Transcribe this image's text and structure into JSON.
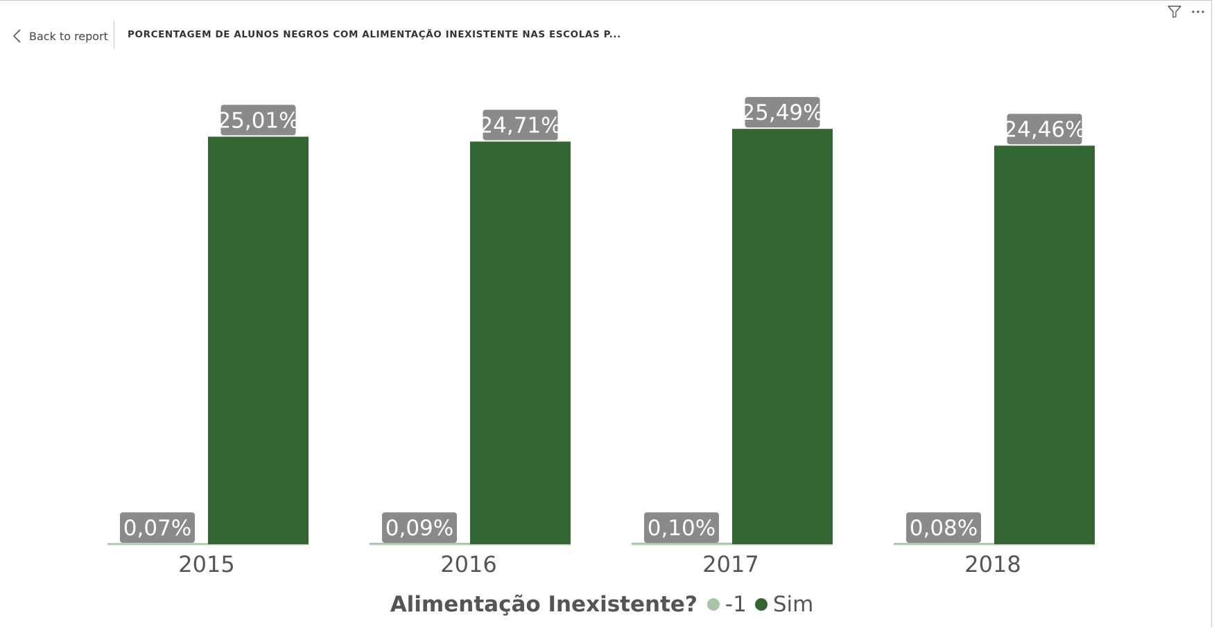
{
  "header": {
    "back_label": "Back to report",
    "title": "PORCENTAGEM DE ALUNOS NEGROS COM ALIMENTAÇÃO INEXISTENTE NAS ESCOLAS P..."
  },
  "icons": {
    "back": "chevron-left-icon",
    "filter": "filter-icon",
    "more": "more-options-icon"
  },
  "colors": {
    "sim": "#336633",
    "minus_one": "#a8c5a8",
    "label_bg": "#8a8a8a",
    "axis_line": "#c8c8c8",
    "axis_text": "#555555"
  },
  "chart_data": {
    "type": "bar",
    "categories": [
      "2015",
      "2016",
      "2017",
      "2018"
    ],
    "series": [
      {
        "name": "-1",
        "values": [
          0.07,
          0.09,
          0.1,
          0.08
        ],
        "labels": [
          "0,07%",
          "0,09%",
          "0,10%",
          "0,08%"
        ]
      },
      {
        "name": "Sim",
        "values": [
          25.01,
          24.71,
          25.49,
          24.46
        ],
        "labels": [
          "25,01%",
          "24,71%",
          "25,49%",
          "24,46%"
        ]
      }
    ],
    "ylim": [
      0,
      28.3
    ],
    "grid": false,
    "legend": {
      "title": "Alimentação Inexistente?",
      "placement": "bottom-center"
    }
  }
}
